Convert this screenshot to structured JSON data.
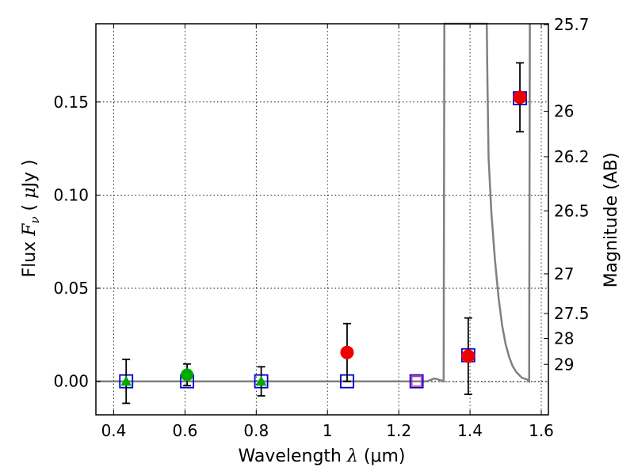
{
  "chart_data": {
    "type": "scatter",
    "title": "",
    "xlabel": {
      "prefix": "Wavelength  ",
      "symbol": "λ",
      "unit": " (μm)"
    },
    "ylabel": {
      "prefix": "Flux  ",
      "symbol": "F",
      "subscript": "ν",
      "open": "  ( ",
      "unit_symbol": "μ",
      "unit": "Jy )"
    },
    "y2label": "Magnitude (AB)",
    "xlim": [
      0.35,
      1.62
    ],
    "ylim": [
      -0.018,
      0.192
    ],
    "x_ticks": [
      0.4,
      0.6,
      0.8,
      1.0,
      1.2,
      1.4,
      1.6
    ],
    "x_tick_labels": [
      "0.4",
      "0.6",
      "0.8",
      "1",
      "1.2",
      "1.4",
      "1.6"
    ],
    "y_ticks": [
      0.0,
      0.05,
      0.1,
      0.15
    ],
    "y_tick_labels": [
      "0.00",
      "0.05",
      "0.10",
      "0.15"
    ],
    "y2_ticks": [
      {
        "label": "25.7",
        "flux": 0.1915
      },
      {
        "label": "26",
        "flux": 0.145
      },
      {
        "label": "26.2",
        "flux": 0.1206
      },
      {
        "label": "26.5",
        "flux": 0.0915
      },
      {
        "label": "27",
        "flux": 0.0577
      },
      {
        "label": "27.5",
        "flux": 0.0364
      },
      {
        "label": "28",
        "flux": 0.023
      },
      {
        "label": "29",
        "flux": 0.0091
      }
    ],
    "grid": true,
    "colors": {
      "model": "#808080",
      "square": "#0000cc",
      "circle": "#ee0000",
      "green": "#00aa00",
      "errorbar": "#000000"
    },
    "series": [
      {
        "marker": "open-square",
        "x": [
          0.435,
          0.606,
          0.814,
          1.055,
          1.25,
          1.395,
          1.54
        ],
        "y": [
          0.0,
          0.0,
          0.0,
          0.0,
          0.0,
          0.014,
          0.152
        ]
      },
      {
        "marker": "circle",
        "x": [
          1.055,
          1.395,
          1.54
        ],
        "y": [
          0.0155,
          0.0135,
          0.1525
        ],
        "err": [
          0.0155,
          0.0205,
          0.0185
        ]
      },
      {
        "marker": "circle-green",
        "x": [
          0.606
        ],
        "y": [
          0.0035
        ],
        "err": [
          0.0058
        ]
      },
      {
        "marker": "triangle-green",
        "x": [
          0.435,
          0.814
        ],
        "y": [
          0.0,
          0.0
        ],
        "err": [
          0.0118,
          0.0078
        ]
      },
      {
        "marker": "open-square-magenta",
        "x": [
          1.25
        ],
        "y": [
          0.0
        ]
      },
      {
        "marker": "line",
        "x": [
          0.35,
          1.2,
          1.28,
          1.3,
          1.32,
          1.326,
          1.328,
          1.35,
          1.4,
          1.44,
          1.447,
          1.449,
          1.452,
          1.46,
          1.47,
          1.48,
          1.49,
          1.5,
          1.51,
          1.52,
          1.53,
          1.545,
          1.56,
          1.566,
          1.568
        ],
        "y": [
          0.0,
          0.0,
          0.0,
          0.0015,
          0.0005,
          0.0,
          0.192,
          0.192,
          0.192,
          0.192,
          0.192,
          0.16,
          0.12,
          0.09,
          0.065,
          0.045,
          0.03,
          0.02,
          0.013,
          0.008,
          0.005,
          0.002,
          0.001,
          0.0,
          0.192
        ]
      }
    ]
  }
}
